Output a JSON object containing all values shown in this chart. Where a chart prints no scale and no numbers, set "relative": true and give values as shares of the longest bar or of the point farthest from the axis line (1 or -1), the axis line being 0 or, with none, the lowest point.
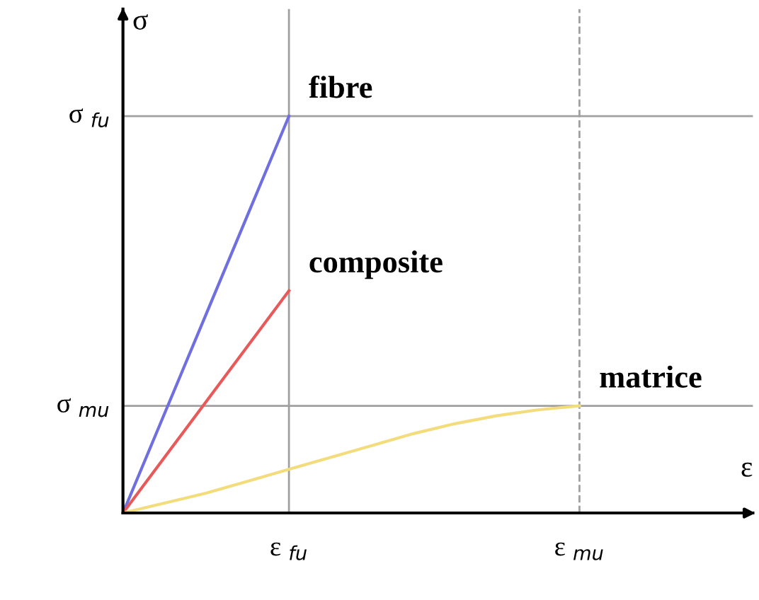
{
  "chart_data": {
    "type": "line",
    "relative": true,
    "xlabel": "ε",
    "ylabel": "σ",
    "categories": [
      null,
      null,
      null,
      null,
      "ε $_{fu}$",
      null,
      null,
      null,
      null,
      null,
      null,
      "ε $_{mu}$"
    ],
    "series": [
      {
        "name": "fibre",
        "color": "#6f6fe0",
        "values": [
          0,
          0.25,
          0.5,
          0.75,
          1,
          null,
          null,
          null,
          null,
          null,
          null,
          null
        ]
      },
      {
        "name": "composite",
        "color": "#e85a5a",
        "values": [
          0,
          0.14,
          0.28,
          0.42,
          0.56,
          null,
          null,
          null,
          null,
          null,
          null,
          null
        ]
      },
      {
        "name": "matrice",
        "color": "#f2dc7c",
        "values": [
          0,
          0.025,
          0.05,
          0.08,
          0.11,
          0.14,
          0.17,
          0.2,
          0.225,
          0.245,
          0.26,
          0.27
        ]
      }
    ],
    "ref_lines": [
      {
        "axis": "y",
        "value": 1,
        "label": "σ $_{fu}$",
        "color": "#a0a0a0",
        "line_style": "solid"
      },
      {
        "axis": "y",
        "value": 0.27,
        "label": "σ $_{mu}$",
        "color": "#a0a0a0",
        "line_style": "solid"
      },
      {
        "axis": "x",
        "value": "ε $_{fu}$",
        "color": "#a0a0a0",
        "line_style": "solid"
      },
      {
        "axis": "x",
        "value": "ε $_{mu}$",
        "color": "#a0a0a0",
        "line_style": "dashed"
      }
    ],
    "legend": false,
    "grid": false,
    "marker": "none",
    "line_style": "solid"
  }
}
